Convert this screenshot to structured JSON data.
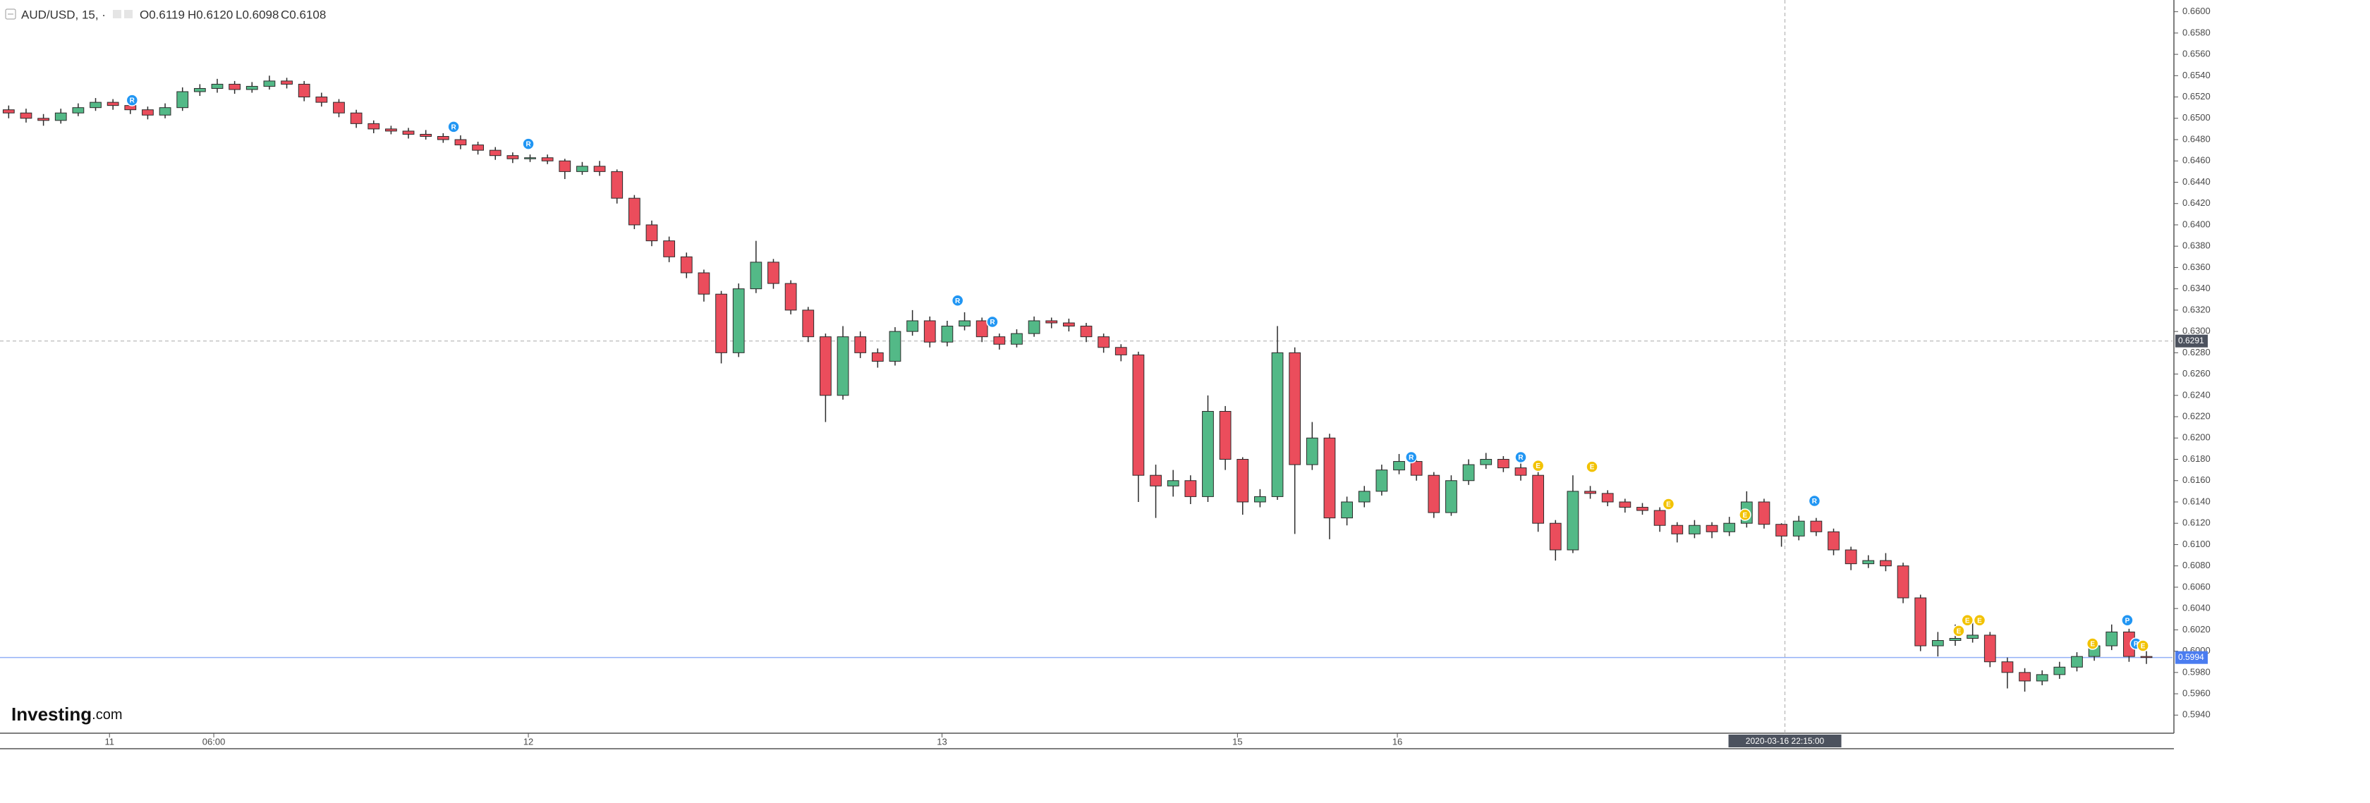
{
  "chart_data": {
    "type": "candlestick",
    "header": {
      "symbol": "AUD/USD, 15, ·",
      "open": "O0.6119",
      "high": "H0.6120",
      "low": "L0.6098",
      "close": "C0.6108"
    },
    "logo": {
      "brand": "Investing",
      "suffix": ".com"
    },
    "up_color": "#53b987",
    "down_color": "#eb4d5c",
    "ohlc": [
      [
        0.6508,
        0.6512,
        0.65,
        0.6505
      ],
      [
        0.6505,
        0.6509,
        0.6496,
        0.65
      ],
      [
        0.65,
        0.6504,
        0.6493,
        0.6498
      ],
      [
        0.6498,
        0.6509,
        0.6495,
        0.6505
      ],
      [
        0.6505,
        0.6514,
        0.6502,
        0.651
      ],
      [
        0.651,
        0.6519,
        0.6507,
        0.6515
      ],
      [
        0.6515,
        0.6518,
        0.6508,
        0.6512
      ],
      [
        0.6512,
        0.6515,
        0.6504,
        0.6508
      ],
      [
        0.6508,
        0.6511,
        0.6499,
        0.6503
      ],
      [
        0.6503,
        0.6514,
        0.65,
        0.651
      ],
      [
        0.651,
        0.6529,
        0.6507,
        0.6525
      ],
      [
        0.6525,
        0.6532,
        0.6521,
        0.6528
      ],
      [
        0.6528,
        0.6537,
        0.6524,
        0.6532
      ],
      [
        0.6532,
        0.6535,
        0.6523,
        0.6527
      ],
      [
        0.6527,
        0.6534,
        0.6524,
        0.653
      ],
      [
        0.653,
        0.654,
        0.6527,
        0.6535
      ],
      [
        0.6535,
        0.6538,
        0.6528,
        0.6532
      ],
      [
        0.6532,
        0.6535,
        0.6516,
        0.652
      ],
      [
        0.652,
        0.6524,
        0.6511,
        0.6515
      ],
      [
        0.6515,
        0.6518,
        0.6501,
        0.6505
      ],
      [
        0.6505,
        0.6508,
        0.6491,
        0.6495
      ],
      [
        0.6495,
        0.6498,
        0.6486,
        0.649
      ],
      [
        0.649,
        0.6493,
        0.6485,
        0.6488
      ],
      [
        0.6488,
        0.6491,
        0.6481,
        0.6485
      ],
      [
        0.6485,
        0.6489,
        0.648,
        0.6483
      ],
      [
        0.6483,
        0.6486,
        0.6477,
        0.648
      ],
      [
        0.648,
        0.6484,
        0.6471,
        0.6475
      ],
      [
        0.6475,
        0.6478,
        0.6466,
        0.647
      ],
      [
        0.647,
        0.6473,
        0.6461,
        0.6465
      ],
      [
        0.6465,
        0.6468,
        0.6458,
        0.6462
      ],
      [
        0.6462,
        0.6466,
        0.6459,
        0.6463
      ],
      [
        0.6463,
        0.6466,
        0.6457,
        0.646
      ],
      [
        0.646,
        0.6462,
        0.6443,
        0.645
      ],
      [
        0.645,
        0.6459,
        0.6447,
        0.6455
      ],
      [
        0.6455,
        0.646,
        0.6446,
        0.645
      ],
      [
        0.645,
        0.6452,
        0.642,
        0.6425
      ],
      [
        0.6425,
        0.6428,
        0.6396,
        0.64
      ],
      [
        0.64,
        0.6404,
        0.638,
        0.6385
      ],
      [
        0.6385,
        0.6389,
        0.6365,
        0.637
      ],
      [
        0.637,
        0.6374,
        0.635,
        0.6355
      ],
      [
        0.6355,
        0.6358,
        0.6328,
        0.6335
      ],
      [
        0.6335,
        0.6338,
        0.627,
        0.628
      ],
      [
        0.628,
        0.6345,
        0.6276,
        0.634
      ],
      [
        0.634,
        0.6385,
        0.6336,
        0.6365
      ],
      [
        0.6365,
        0.6368,
        0.634,
        0.6345
      ],
      [
        0.6345,
        0.6348,
        0.6316,
        0.632
      ],
      [
        0.632,
        0.6323,
        0.629,
        0.6295
      ],
      [
        0.6295,
        0.6298,
        0.6215,
        0.624
      ],
      [
        0.624,
        0.6305,
        0.6236,
        0.6295
      ],
      [
        0.6295,
        0.63,
        0.6275,
        0.628
      ],
      [
        0.628,
        0.6284,
        0.6266,
        0.6272
      ],
      [
        0.6272,
        0.6304,
        0.6268,
        0.63
      ],
      [
        0.63,
        0.632,
        0.6296,
        0.631
      ],
      [
        0.631,
        0.6314,
        0.6285,
        0.629
      ],
      [
        0.629,
        0.631,
        0.6286,
        0.6305
      ],
      [
        0.6305,
        0.6318,
        0.6301,
        0.631
      ],
      [
        0.631,
        0.6313,
        0.629,
        0.6295
      ],
      [
        0.6295,
        0.6298,
        0.6283,
        0.6288
      ],
      [
        0.6288,
        0.6302,
        0.6285,
        0.6298
      ],
      [
        0.6298,
        0.6314,
        0.6295,
        0.631
      ],
      [
        0.631,
        0.6313,
        0.6303,
        0.6308
      ],
      [
        0.6308,
        0.6312,
        0.63,
        0.6305
      ],
      [
        0.6305,
        0.6308,
        0.629,
        0.6295
      ],
      [
        0.6295,
        0.6298,
        0.628,
        0.6285
      ],
      [
        0.6285,
        0.6288,
        0.6272,
        0.6278
      ],
      [
        0.6278,
        0.6281,
        0.614,
        0.6165
      ],
      [
        0.6165,
        0.6175,
        0.6125,
        0.6155
      ],
      [
        0.6155,
        0.617,
        0.6145,
        0.616
      ],
      [
        0.616,
        0.6165,
        0.6138,
        0.6145
      ],
      [
        0.6145,
        0.624,
        0.614,
        0.6225
      ],
      [
        0.6225,
        0.623,
        0.617,
        0.618
      ],
      [
        0.618,
        0.6182,
        0.6128,
        0.614
      ],
      [
        0.614,
        0.6152,
        0.6135,
        0.6145
      ],
      [
        0.6145,
        0.6305,
        0.6142,
        0.628
      ],
      [
        0.628,
        0.6285,
        0.611,
        0.6175
      ],
      [
        0.6175,
        0.6215,
        0.617,
        0.62
      ],
      [
        0.62,
        0.6204,
        0.6105,
        0.6125
      ],
      [
        0.6125,
        0.6145,
        0.6118,
        0.614
      ],
      [
        0.614,
        0.6155,
        0.6135,
        0.615
      ],
      [
        0.615,
        0.6175,
        0.6146,
        0.617
      ],
      [
        0.617,
        0.6185,
        0.6166,
        0.6178
      ],
      [
        0.6178,
        0.6181,
        0.616,
        0.6165
      ],
      [
        0.6165,
        0.6168,
        0.6125,
        0.613
      ],
      [
        0.613,
        0.6165,
        0.6127,
        0.616
      ],
      [
        0.616,
        0.618,
        0.6156,
        0.6175
      ],
      [
        0.6175,
        0.6186,
        0.6171,
        0.618
      ],
      [
        0.618,
        0.6183,
        0.6168,
        0.6172
      ],
      [
        0.6172,
        0.6176,
        0.616,
        0.6165
      ],
      [
        0.6165,
        0.6168,
        0.6112,
        0.612
      ],
      [
        0.612,
        0.6123,
        0.6085,
        0.6095
      ],
      [
        0.6095,
        0.6165,
        0.6092,
        0.615
      ],
      [
        0.615,
        0.6155,
        0.6143,
        0.6148
      ],
      [
        0.6148,
        0.6151,
        0.6136,
        0.614
      ],
      [
        0.614,
        0.6143,
        0.613,
        0.6135
      ],
      [
        0.6135,
        0.6139,
        0.6128,
        0.6132
      ],
      [
        0.6132,
        0.6135,
        0.6112,
        0.6118
      ],
      [
        0.6118,
        0.6121,
        0.6102,
        0.611
      ],
      [
        0.611,
        0.6123,
        0.6106,
        0.6118
      ],
      [
        0.6118,
        0.6121,
        0.6106,
        0.6112
      ],
      [
        0.6112,
        0.6126,
        0.6108,
        0.612
      ],
      [
        0.612,
        0.615,
        0.6116,
        0.614
      ],
      [
        0.614,
        0.6143,
        0.6115,
        0.6119
      ],
      [
        0.6119,
        0.612,
        0.6098,
        0.6108
      ],
      [
        0.6108,
        0.6127,
        0.6104,
        0.6122
      ],
      [
        0.6122,
        0.6125,
        0.6108,
        0.6112
      ],
      [
        0.6112,
        0.6115,
        0.609,
        0.6095
      ],
      [
        0.6095,
        0.6098,
        0.6076,
        0.6082
      ],
      [
        0.6082,
        0.609,
        0.6078,
        0.6085
      ],
      [
        0.6085,
        0.6092,
        0.6075,
        0.608
      ],
      [
        0.608,
        0.6083,
        0.6045,
        0.605
      ],
      [
        0.605,
        0.6053,
        0.6,
        0.6005
      ],
      [
        0.6005,
        0.6018,
        0.5995,
        0.601
      ],
      [
        0.601,
        0.6025,
        0.6005,
        0.6012
      ],
      [
        0.6012,
        0.6028,
        0.6008,
        0.6015
      ],
      [
        0.6015,
        0.6018,
        0.5985,
        0.599
      ],
      [
        0.599,
        0.5994,
        0.5965,
        0.598
      ],
      [
        0.598,
        0.5984,
        0.5962,
        0.5972
      ],
      [
        0.5972,
        0.5982,
        0.5968,
        0.5978
      ],
      [
        0.5978,
        0.599,
        0.5974,
        0.5985
      ],
      [
        0.5985,
        0.5999,
        0.5981,
        0.5995
      ],
      [
        0.5995,
        0.601,
        0.5991,
        0.6005
      ],
      [
        0.6005,
        0.6025,
        0.6001,
        0.6018
      ],
      [
        0.6018,
        0.6021,
        0.599,
        0.5995
      ],
      [
        0.5995,
        0.6,
        0.5988,
        0.5994
      ]
    ],
    "xlim": [
      0,
      125
    ],
    "xticks": [
      {
        "value": 6.3,
        "label": "11"
      },
      {
        "value": 12.3,
        "label": "06:00"
      },
      {
        "value": 30.4,
        "label": "12"
      },
      {
        "value": 54.2,
        "label": "13"
      },
      {
        "value": 71.2,
        "label": "15"
      },
      {
        "value": 80.4,
        "label": "16"
      }
    ],
    "ylim": [
      0.5923,
      0.6611
    ],
    "yticks": [
      {
        "value": 0.594,
        "label": "0.5940"
      },
      {
        "value": 0.596,
        "label": "0.5960"
      },
      {
        "value": 0.598,
        "label": "0.5980"
      },
      {
        "value": 0.6,
        "label": "0.6000"
      },
      {
        "value": 0.602,
        "label": "0.6020"
      },
      {
        "value": 0.604,
        "label": "0.6040"
      },
      {
        "value": 0.606,
        "label": "0.6060"
      },
      {
        "value": 0.608,
        "label": "0.6080"
      },
      {
        "value": 0.61,
        "label": "0.6100"
      },
      {
        "value": 0.612,
        "label": "0.6120"
      },
      {
        "value": 0.614,
        "label": "0.6140"
      },
      {
        "value": 0.616,
        "label": "0.6160"
      },
      {
        "value": 0.618,
        "label": "0.6180"
      },
      {
        "value": 0.62,
        "label": "0.6200"
      },
      {
        "value": 0.622,
        "label": "0.6220"
      },
      {
        "value": 0.624,
        "label": "0.6240"
      },
      {
        "value": 0.626,
        "label": "0.6260"
      },
      {
        "value": 0.628,
        "label": "0.6280"
      },
      {
        "value": 0.63,
        "label": "0.6300"
      },
      {
        "value": 0.632,
        "label": "0.6320"
      },
      {
        "value": 0.634,
        "label": "0.6340"
      },
      {
        "value": 0.636,
        "label": "0.6360"
      },
      {
        "value": 0.638,
        "label": "0.6380"
      },
      {
        "value": 0.64,
        "label": "0.6400"
      },
      {
        "value": 0.642,
        "label": "0.6420"
      },
      {
        "value": 0.644,
        "label": "0.6440"
      },
      {
        "value": 0.646,
        "label": "0.6460"
      },
      {
        "value": 0.648,
        "label": "0.6480"
      },
      {
        "value": 0.65,
        "label": "0.6500"
      },
      {
        "value": 0.652,
        "label": "0.6520"
      },
      {
        "value": 0.654,
        "label": "0.6540"
      },
      {
        "value": 0.656,
        "label": "0.6560"
      },
      {
        "value": 0.658,
        "label": "0.6580"
      },
      {
        "value": 0.66,
        "label": "0.6600"
      }
    ],
    "crosshair": {
      "x": {
        "value": 102.7,
        "label": "2020-03-16 22:15:00"
      },
      "y": 0.6291
    },
    "last_price": {
      "value": 0.5994,
      "color": "#4a7cf0"
    },
    "events": [
      {
        "label": "R",
        "x": 7.6,
        "y": 0.6517,
        "color": "#2196f3"
      },
      {
        "label": "R",
        "x": 26.1,
        "y": 0.6492,
        "color": "#2196f3"
      },
      {
        "label": "R",
        "x": 30.4,
        "y": 0.6476,
        "color": "#2196f3"
      },
      {
        "label": "R",
        "x": 55.1,
        "y": 0.6329,
        "color": "#2196f3"
      },
      {
        "label": "R",
        "x": 57.1,
        "y": 0.6309,
        "color": "#2196f3"
      },
      {
        "label": "R",
        "x": 81.2,
        "y": 0.6182,
        "color": "#2196f3"
      },
      {
        "label": "R",
        "x": 87.5,
        "y": 0.6182,
        "color": "#2196f3"
      },
      {
        "label": "E",
        "x": 88.5,
        "y": 0.6174,
        "color": "#f2c200"
      },
      {
        "label": "E",
        "x": 91.6,
        "y": 0.6173,
        "color": "#f2c200"
      },
      {
        "label": "E",
        "x": 96.0,
        "y": 0.6138,
        "color": "#f2c200"
      },
      {
        "label": "E",
        "x": 100.4,
        "y": 0.6128,
        "color": "#f2c200"
      },
      {
        "label": "R",
        "x": 104.4,
        "y": 0.6141,
        "color": "#2196f3"
      },
      {
        "label": "E",
        "x": 112.7,
        "y": 0.6019,
        "color": "#f2c200"
      },
      {
        "label": "E",
        "x": 113.2,
        "y": 0.6029,
        "color": "#f2c200"
      },
      {
        "label": "E",
        "x": 113.9,
        "y": 0.6029,
        "color": "#f2c200"
      },
      {
        "label": "E",
        "x": 120.4,
        "y": 0.6007,
        "color": "#f2c200"
      },
      {
        "label": "P",
        "x": 122.4,
        "y": 0.6029,
        "color": "#2196f3"
      },
      {
        "label": "P",
        "x": 122.9,
        "y": 0.6007,
        "color": "#2196f3"
      },
      {
        "label": "E",
        "x": 123.3,
        "y": 0.6005,
        "color": "#f2c200"
      }
    ]
  }
}
